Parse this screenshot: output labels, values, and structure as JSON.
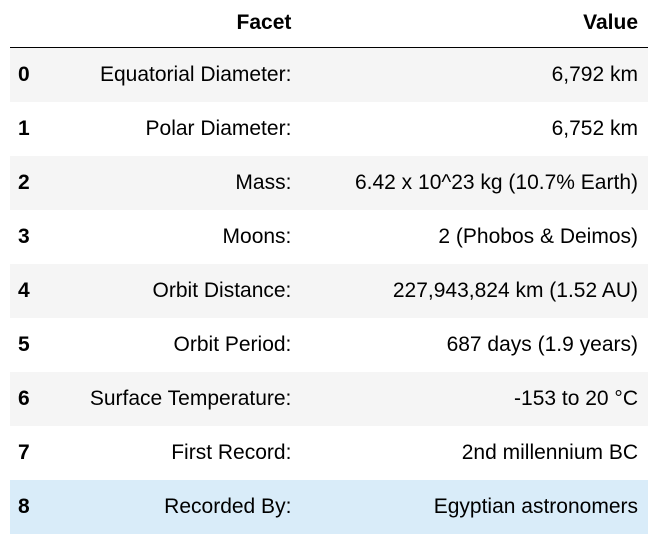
{
  "table": {
    "columns": [
      "Facet",
      "Value"
    ],
    "rows": [
      [
        0,
        "Equatorial Diameter:",
        "6,792 km"
      ],
      [
        1,
        "Polar Diameter:",
        "6,752 km"
      ],
      [
        2,
        "Mass:",
        "6.42 x 10^23 kg (10.7% Earth)"
      ],
      [
        3,
        "Moons:",
        "2 (Phobos & Deimos)"
      ],
      [
        4,
        "Orbit Distance:",
        "227,943,824 km (1.52 AU)"
      ],
      [
        5,
        "Orbit Period:",
        "687 days (1.9 years)"
      ],
      [
        6,
        "Surface Temperature:",
        "-153 to 20 °C"
      ],
      [
        7,
        "First Record:",
        "2nd millennium BC"
      ],
      [
        8,
        "Recorded By:",
        "Egyptian astronomers"
      ]
    ]
  }
}
